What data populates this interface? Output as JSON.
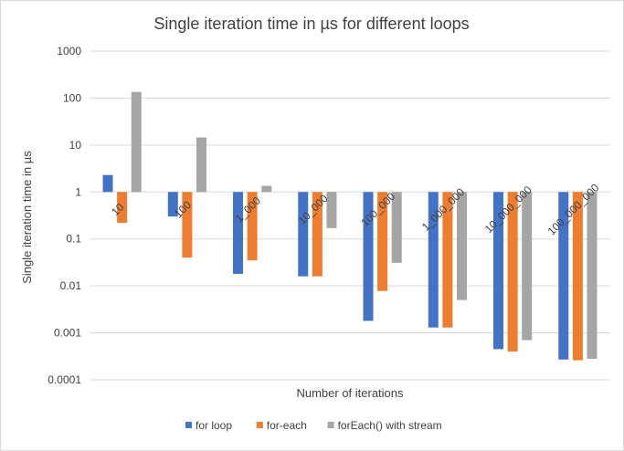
{
  "chart_data": {
    "type": "bar",
    "title": "Single iteration time in µs for different loops",
    "xlabel": "Number of iterations",
    "ylabel": "Single iteration time in µs",
    "y_scale": "log",
    "ylim": [
      0.0001,
      1000
    ],
    "y_ticks": [
      "1000",
      "100",
      "10",
      "1",
      "0.1",
      "0.01",
      "0.001",
      "0.0001"
    ],
    "grid": true,
    "legend_position": "bottom",
    "categories": [
      "10",
      "100",
      "1_000",
      "10_000",
      "100_000",
      "1_000_000",
      "10_000_000",
      "100_000_000"
    ],
    "series": [
      {
        "name": "for loop",
        "color": "#4472C4",
        "values": [
          2.3,
          0.3,
          0.018,
          0.016,
          0.0018,
          0.0013,
          0.00045,
          0.00027
        ]
      },
      {
        "name": "for-each",
        "color": "#ED7D31",
        "values": [
          0.22,
          0.04,
          0.035,
          0.016,
          0.0078,
          0.0013,
          0.0004,
          0.00026
        ]
      },
      {
        "name": "forEach() with stream",
        "color": "#A5A5A5",
        "values": [
          135,
          14.5,
          1.35,
          0.17,
          0.031,
          0.005,
          0.0007,
          0.00028
        ]
      }
    ]
  }
}
